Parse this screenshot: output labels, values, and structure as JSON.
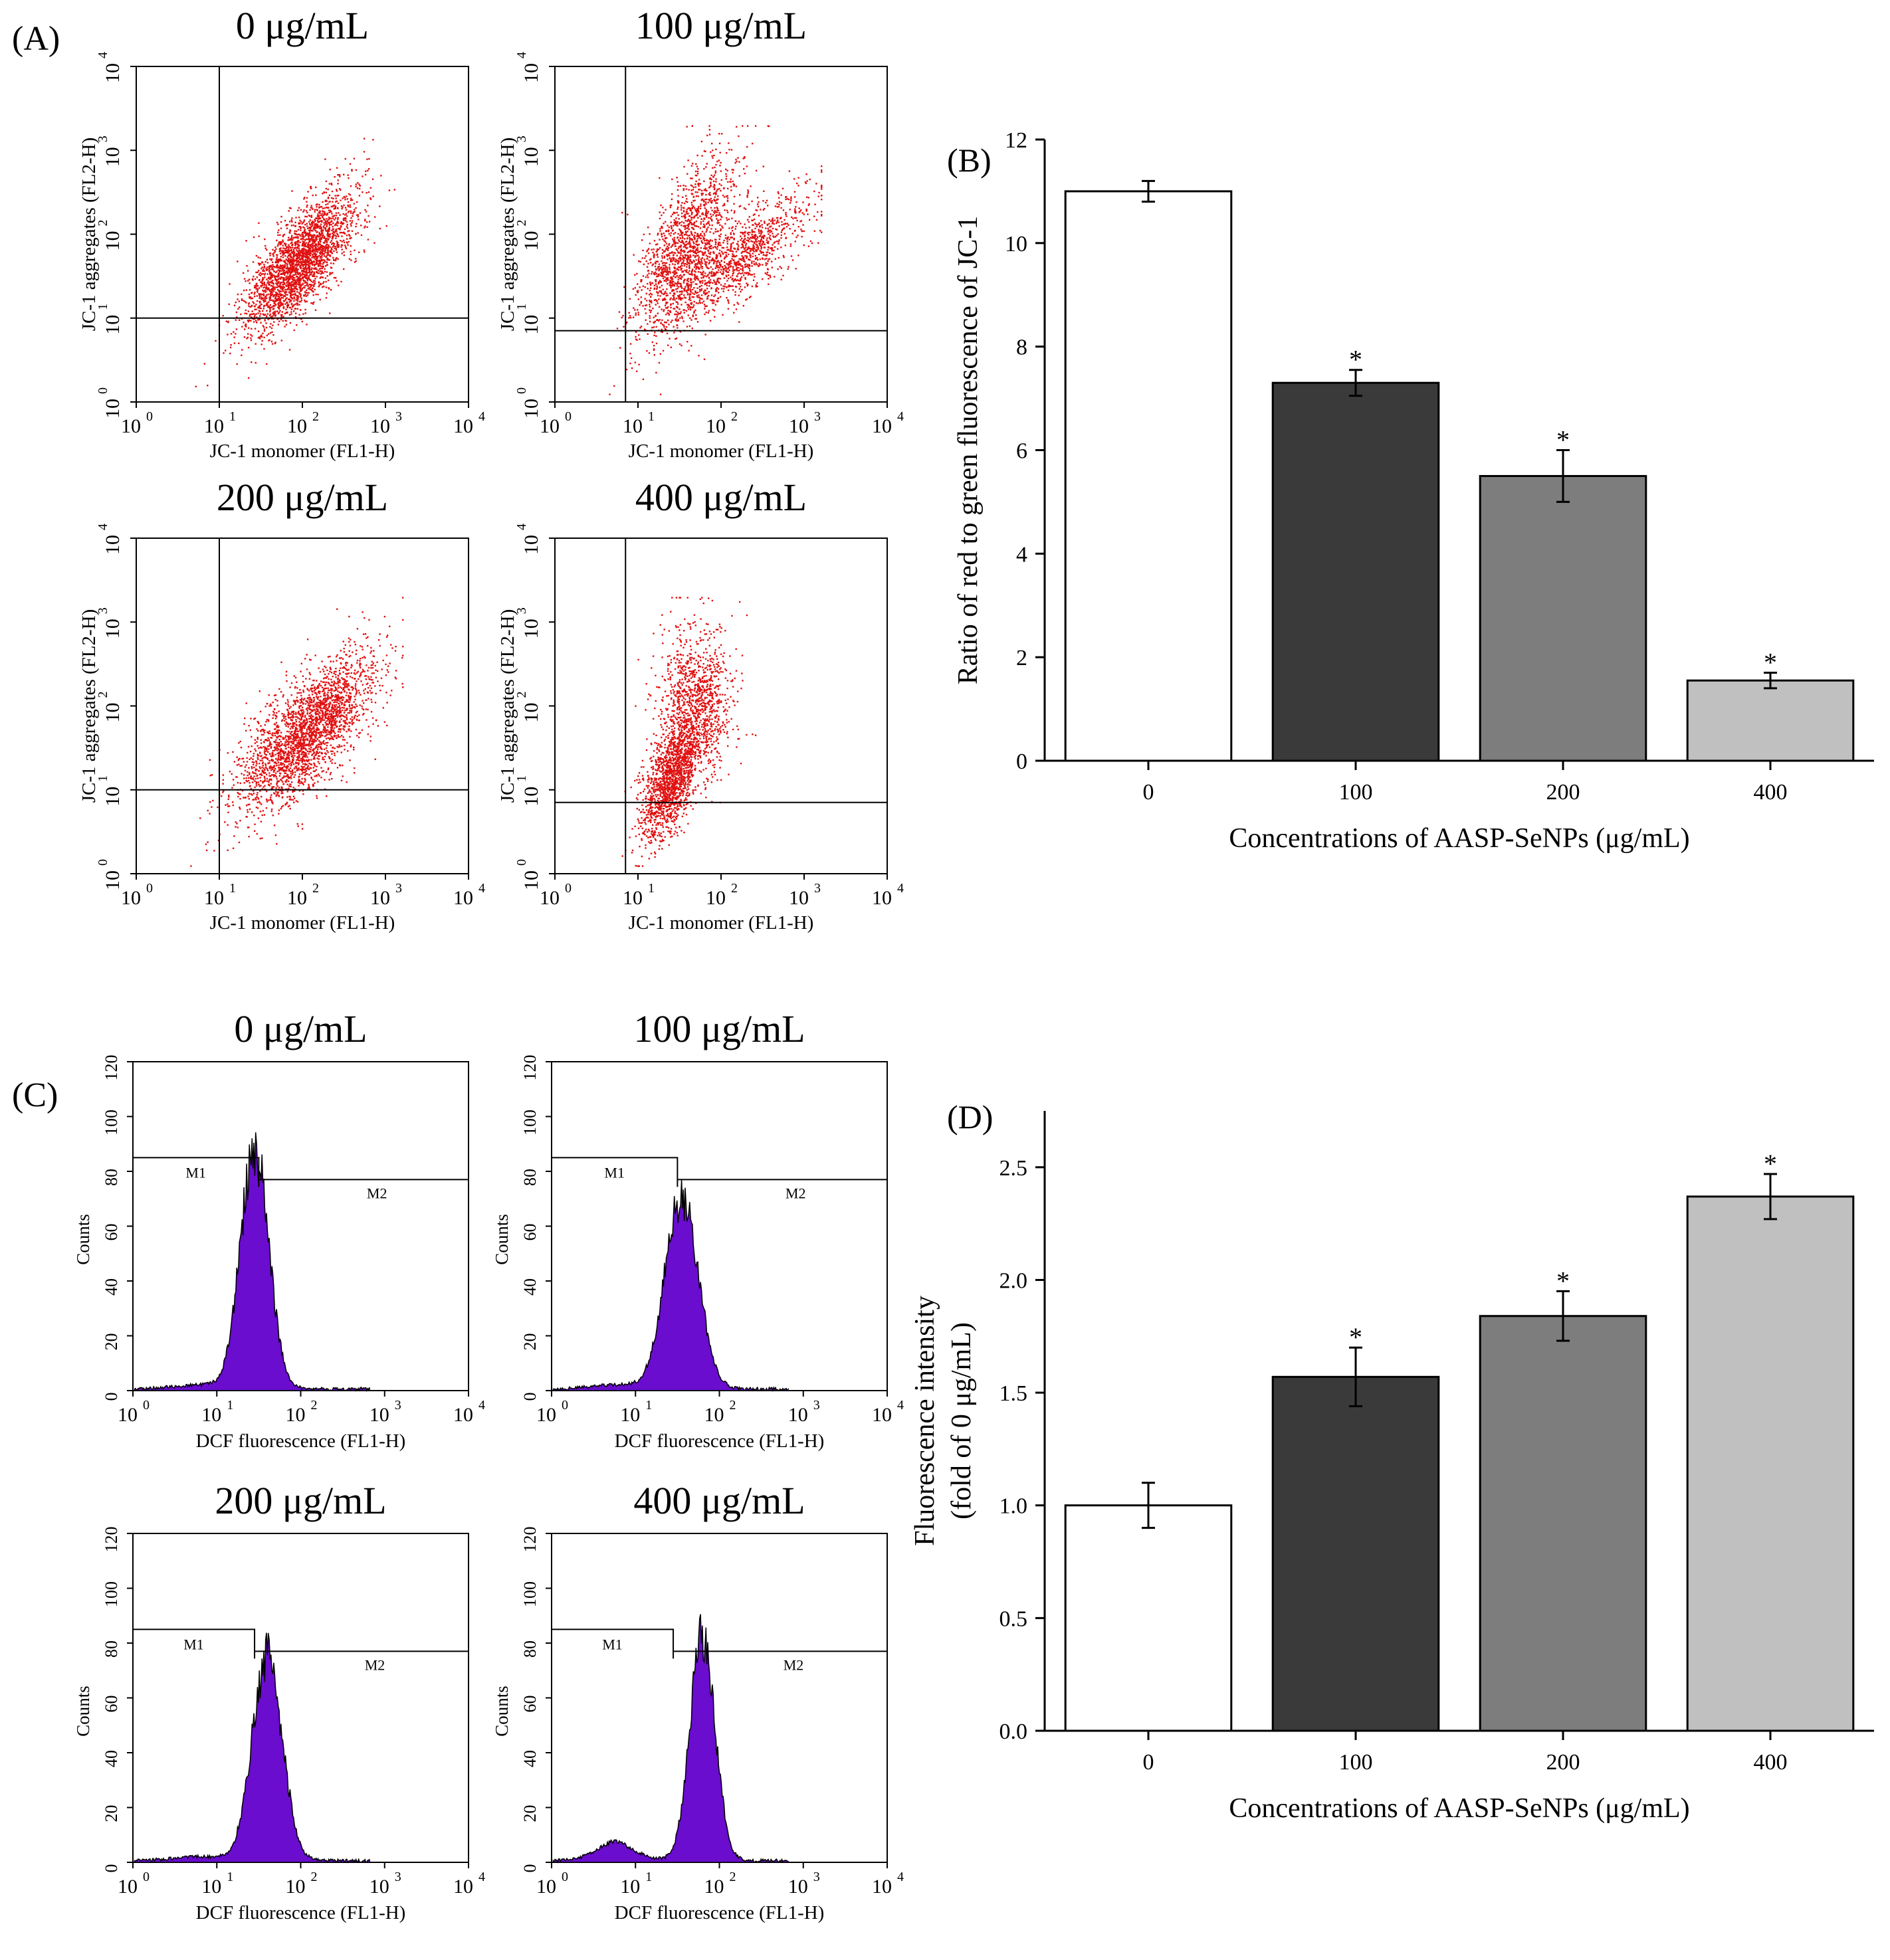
{
  "colors": {
    "scatter_dot": "#e01010",
    "histogram_fill": "#6a0dce",
    "bar_0": "#ffffff",
    "bar_100": "#3a3a3a",
    "bar_200": "#7d7d7d",
    "bar_400": "#c0c0c0"
  },
  "panel_a": {
    "label": "(A)",
    "x_axis_label": "JC-1 monomer (FL1-H)",
    "y_axis_label": "JC-1 aggregates (FL2-H)",
    "tick_exponents": [
      "0",
      "1",
      "2",
      "3",
      "4"
    ],
    "plots": [
      {
        "title": "0 μg/mL",
        "gate_x_decade": 1.0,
        "gate_y_decade": 1.0
      },
      {
        "title": "100 μg/mL",
        "gate_x_decade": 0.85,
        "gate_y_decade": 0.85
      },
      {
        "title": "200 μg/mL",
        "gate_x_decade": 1.0,
        "gate_y_decade": 1.0
      },
      {
        "title": "400 μg/mL",
        "gate_x_decade": 0.85,
        "gate_y_decade": 0.85
      }
    ]
  },
  "panel_c": {
    "label": "(C)",
    "x_axis_label": "DCF fluorescence (FL1-H)",
    "y_axis_label": "Counts",
    "y_ticks": [
      "0",
      "20",
      "40",
      "60",
      "80",
      "100",
      "120"
    ],
    "tick_exponents": [
      "0",
      "1",
      "2",
      "3",
      "4"
    ],
    "gate_m1": "M1",
    "gate_m2": "M2",
    "plots": [
      {
        "title": "0 μg/mL",
        "peak_decade": 1.45,
        "peak_count": 88,
        "spread": 0.17,
        "gate_decade": 1.5,
        "m1_count": 85,
        "m2_count": 77
      },
      {
        "title": "100 μg/mL",
        "peak_decade": 1.55,
        "peak_count": 70,
        "spread": 0.2,
        "gate_decade": 1.5,
        "m1_count": 85,
        "m2_count": 77
      },
      {
        "title": "200 μg/mL",
        "peak_decade": 1.6,
        "peak_count": 75,
        "spread": 0.18,
        "gate_decade": 1.45,
        "m1_count": 85,
        "m2_count": 77
      },
      {
        "title": "400 μg/mL",
        "peak_decade": 1.8,
        "peak_count": 83,
        "spread": 0.15,
        "gate_decade": 1.45,
        "m1_count": 85,
        "m2_count": 77
      }
    ]
  },
  "chart_data": [
    {
      "panel": "(B)",
      "type": "bar",
      "categories": [
        "0",
        "100",
        "200",
        "400"
      ],
      "values": [
        11.0,
        7.3,
        5.5,
        1.55
      ],
      "errors": [
        0.2,
        0.25,
        0.5,
        0.15
      ],
      "significance": [
        "",
        "*",
        "*",
        "*"
      ],
      "title": "",
      "xlabel": "Concentrations of AASP-SeNPs (μg/mL)",
      "ylabel": "Ratio of red to green fluorescence of JC-1",
      "ylim": [
        0,
        12
      ],
      "y_ticks": [
        "0",
        "2",
        "4",
        "6",
        "8",
        "10",
        "12"
      ]
    },
    {
      "panel": "(D)",
      "type": "bar",
      "categories": [
        "0",
        "100",
        "200",
        "400"
      ],
      "values": [
        1.0,
        1.57,
        1.84,
        2.37
      ],
      "errors": [
        0.1,
        0.13,
        0.11,
        0.1
      ],
      "significance": [
        "",
        "*",
        "*",
        "*"
      ],
      "title": "",
      "xlabel": "Concentrations of AASP-SeNPs (μg/mL)",
      "ylabel_line1": "Fluorescence intensity",
      "ylabel_line2": "(fold of 0 μg/mL)",
      "ylim": [
        0,
        2.75
      ],
      "y_ticks": [
        "0.0",
        "0.5",
        "1.0",
        "1.5",
        "2.0",
        "2.5"
      ]
    }
  ]
}
